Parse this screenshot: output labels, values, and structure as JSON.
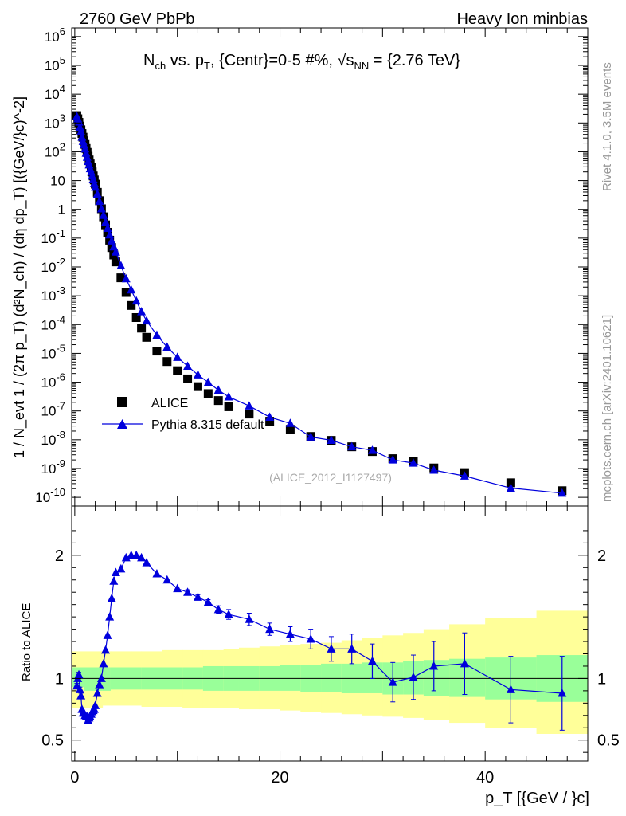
{
  "header": {
    "left": "2760 GeV PbPb",
    "right": "Heavy Ion minbias"
  },
  "side_labels": {
    "rivet": "Rivet 4.1.0,  3.5M events",
    "mcplots": "mcplots.cern.ch [arXiv:2401.10621]"
  },
  "colors": {
    "mc": "#0000dd",
    "data": "#000000",
    "band_outer": "#ffff99",
    "band_inner": "#99ff99"
  },
  "chart_data": [
    {
      "type": "scatter",
      "panel": "main",
      "title": {
        "line": "N_ch vs. p_T, {Centr}=0-5 #%, √s_NN = {2.76 TeV}",
        "prefix": "N",
        "sub1": "ch",
        "mid": " vs. p",
        "sub2": "T",
        "mid2": ", {Centr}=0-5 #%, ",
        "sqrt_s": "s",
        "sub3": "NN",
        "suffix": " = {2.76 TeV}"
      },
      "ylabel": "1 / N_evt 1 / (2π p_T) (d²N_ch) / (dη dp_T) [({GeV/}c)^-2]",
      "yscale": "log",
      "ylim": [
        5e-11,
        2000000.0
      ],
      "xlim": [
        -0.3,
        50
      ],
      "y_tick_labels": [
        "10^-10",
        "10^-9",
        "10^-8",
        "10^-7",
        "10^-6",
        "10^-5",
        "10^-4",
        "10^-3",
        "10^-2",
        "10^-1",
        "1",
        "10",
        "10^2",
        "10^3",
        "10^4",
        "10^5",
        "10^6"
      ],
      "watermark": "(ALICE_2012_I1127497)",
      "legend": {
        "position": "lower-left",
        "entries": [
          "ALICE",
          "Pythia 8.315 default"
        ]
      },
      "series": [
        {
          "name": "ALICE",
          "marker": "square",
          "x": [
            0.2,
            0.3,
            0.4,
            0.5,
            0.6,
            0.7,
            0.8,
            0.9,
            1.0,
            1.1,
            1.2,
            1.3,
            1.4,
            1.5,
            1.6,
            1.7,
            1.8,
            1.9,
            2.0,
            2.2,
            2.4,
            2.6,
            2.8,
            3.0,
            3.2,
            3.4,
            3.6,
            3.8,
            4.0,
            4.5,
            5.0,
            5.5,
            6.0,
            6.5,
            7.0,
            8.0,
            9.0,
            10.0,
            11.0,
            12.0,
            13.0,
            14.0,
            15.0,
            17.0,
            19.0,
            21.0,
            23.0,
            25.0,
            27.0,
            29.0,
            31.0,
            33.0,
            35.0,
            38.0,
            42.5,
            47.5
          ],
          "y": [
            1800,
            1400,
            1050,
            780,
            580,
            430,
            320,
            240,
            180,
            130,
            95,
            70,
            52,
            38,
            28,
            20,
            14.5,
            10.5,
            7.5,
            3.9,
            2.0,
            1.05,
            0.55,
            0.29,
            0.16,
            0.085,
            0.047,
            0.026,
            0.015,
            0.0042,
            0.0013,
            0.00046,
            0.000175,
            7.5e-05,
            3.6e-05,
            1.2e-05,
            5.2e-06,
            2.5e-06,
            1.3e-06,
            7e-07,
            4e-07,
            2.3e-07,
            1.4e-07,
            7.8e-08,
            4.4e-08,
            2.3e-08,
            1.3e-08,
            9.5e-09,
            5.7e-09,
            3.9e-09,
            2.2e-09,
            1.8e-09,
            1.05e-09,
            7.2e-10,
            3.2e-10,
            1.7e-10
          ]
        },
        {
          "name": "Pythia 8.315 default",
          "marker": "triangle",
          "x": [
            0.2,
            0.3,
            0.4,
            0.5,
            0.6,
            0.7,
            0.8,
            0.9,
            1.0,
            1.1,
            1.2,
            1.3,
            1.4,
            1.5,
            1.6,
            1.7,
            1.8,
            1.9,
            2.0,
            2.2,
            2.4,
            2.6,
            2.8,
            3.0,
            3.2,
            3.4,
            3.6,
            3.8,
            4.0,
            4.5,
            5.0,
            5.5,
            6.0,
            6.5,
            7.0,
            8.0,
            9.0,
            10.0,
            11.0,
            12.0,
            13.0,
            14.0,
            15.0,
            17.0,
            19.0,
            21.0,
            23.0,
            25.0,
            27.0,
            29.0,
            31.0,
            33.0,
            35.0,
            38.0,
            42.5,
            47.5
          ],
          "y": [
            1690,
            1400,
            1080,
            710,
            500,
            320,
            230,
            174,
            126,
            90,
            65,
            46,
            35,
            26,
            19.9,
            14.5,
            10.7,
            7.9,
            5.9,
            3.4,
            1.9,
            1.05,
            0.62,
            0.36,
            0.22,
            0.13,
            0.08,
            0.05,
            0.033,
            0.011,
            0.0039,
            0.0016,
            0.00066,
            0.00028,
            0.000135,
            4.3e-05,
            1.65e-05,
            7.3e-06,
            3.6e-06,
            1.8e-06,
            9.9e-07,
            5.3e-07,
            3.1e-07,
            1.5e-07,
            6.1e-08,
            3.7e-08,
            1.25e-08,
            9.6e-09,
            5.7e-09,
            4.3e-09,
            2e-09,
            1.55e-09,
            8.8e-10,
            5.5e-10,
            2.1e-10,
            1.4e-10
          ]
        }
      ]
    },
    {
      "type": "scatter",
      "panel": "ratio",
      "ylabel": "Ratio to ALICE",
      "xlabel": "p_T [{GeV / }c]",
      "ylim": [
        0.33,
        2.4
      ],
      "xlim": [
        -0.3,
        50
      ],
      "y_ticks": [
        0.5,
        1,
        2
      ],
      "y_tick_labels": [
        "0.5",
        "1",
        "2"
      ],
      "x_ticks": [
        0,
        20,
        40
      ],
      "x_tick_labels": [
        "0",
        "20",
        "40"
      ],
      "reference_line": 1,
      "band_edges": [
        -0.3,
        0.9,
        2.7,
        3.5,
        5.5,
        6.5,
        8.5,
        10.5,
        12.5,
        14.5,
        16,
        18,
        20,
        22,
        24,
        26,
        28,
        30,
        32,
        34,
        36.5,
        40,
        45,
        50
      ],
      "band_outer_lo": [
        0.76,
        0.76,
        0.78,
        0.78,
        0.78,
        0.77,
        0.77,
        0.76,
        0.76,
        0.76,
        0.75,
        0.75,
        0.74,
        0.73,
        0.72,
        0.71,
        0.7,
        0.69,
        0.68,
        0.66,
        0.64,
        0.6,
        0.55
      ],
      "band_outer_hi": [
        1.22,
        1.22,
        1.22,
        1.22,
        1.22,
        1.22,
        1.23,
        1.23,
        1.23,
        1.24,
        1.25,
        1.26,
        1.27,
        1.28,
        1.29,
        1.31,
        1.33,
        1.35,
        1.37,
        1.4,
        1.44,
        1.49,
        1.55
      ],
      "band_inner_lo": [
        0.93,
        0.9,
        0.9,
        0.91,
        0.91,
        0.91,
        0.91,
        0.91,
        0.9,
        0.9,
        0.9,
        0.9,
        0.9,
        0.89,
        0.89,
        0.88,
        0.88,
        0.87,
        0.87,
        0.86,
        0.85,
        0.83,
        0.81
      ],
      "band_inner_hi": [
        1.09,
        1.09,
        1.09,
        1.09,
        1.09,
        1.09,
        1.09,
        1.09,
        1.1,
        1.1,
        1.1,
        1.1,
        1.11,
        1.11,
        1.12,
        1.12,
        1.13,
        1.13,
        1.14,
        1.15,
        1.16,
        1.17,
        1.19
      ],
      "series": [
        {
          "name": "Pythia 8.315 default / ALICE",
          "x": [
            0.2,
            0.3,
            0.4,
            0.5,
            0.6,
            0.7,
            0.8,
            0.9,
            1.0,
            1.1,
            1.2,
            1.3,
            1.4,
            1.5,
            1.6,
            1.7,
            1.8,
            1.9,
            2.0,
            2.2,
            2.4,
            2.6,
            2.8,
            3.0,
            3.2,
            3.4,
            3.6,
            3.8,
            4.0,
            4.5,
            5.0,
            5.5,
            6.0,
            6.5,
            7.0,
            8.0,
            9.0,
            10.0,
            11.0,
            12.0,
            13.0,
            14.0,
            15.0,
            17.0,
            19.0,
            21.0,
            23.0,
            25.0,
            27.0,
            29.0,
            31.0,
            33.0,
            35.0,
            38.0,
            42.5,
            47.5
          ],
          "y": [
            0.94,
            1.0,
            1.03,
            0.91,
            0.86,
            0.75,
            0.72,
            0.72,
            0.7,
            0.69,
            0.69,
            0.66,
            0.68,
            0.69,
            0.71,
            0.73,
            0.74,
            0.75,
            0.78,
            0.88,
            0.95,
            1.0,
            1.12,
            1.23,
            1.35,
            1.5,
            1.65,
            1.79,
            1.86,
            1.89,
            1.98,
            2.0,
            2.0,
            1.98,
            1.94,
            1.85,
            1.8,
            1.73,
            1.7,
            1.66,
            1.62,
            1.56,
            1.52,
            1.48,
            1.4,
            1.36,
            1.32,
            1.24,
            1.24,
            1.14,
            0.97,
            1.01,
            1.1,
            1.12,
            0.91,
            0.88
          ],
          "err": [
            0.02,
            0.02,
            0.02,
            0.02,
            0.02,
            0.01,
            0.01,
            0.01,
            0.01,
            0.01,
            0.01,
            0.01,
            0.01,
            0.01,
            0.01,
            0.01,
            0.01,
            0.01,
            0.01,
            0.01,
            0.01,
            0.01,
            0.01,
            0.01,
            0.01,
            0.01,
            0.01,
            0.01,
            0.01,
            0.01,
            0.01,
            0.01,
            0.01,
            0.01,
            0.01,
            0.01,
            0.01,
            0.01,
            0.02,
            0.02,
            0.02,
            0.03,
            0.04,
            0.05,
            0.05,
            0.06,
            0.08,
            0.1,
            0.12,
            0.14,
            0.16,
            0.18,
            0.2,
            0.25,
            0.27,
            0.3
          ]
        }
      ]
    }
  ]
}
